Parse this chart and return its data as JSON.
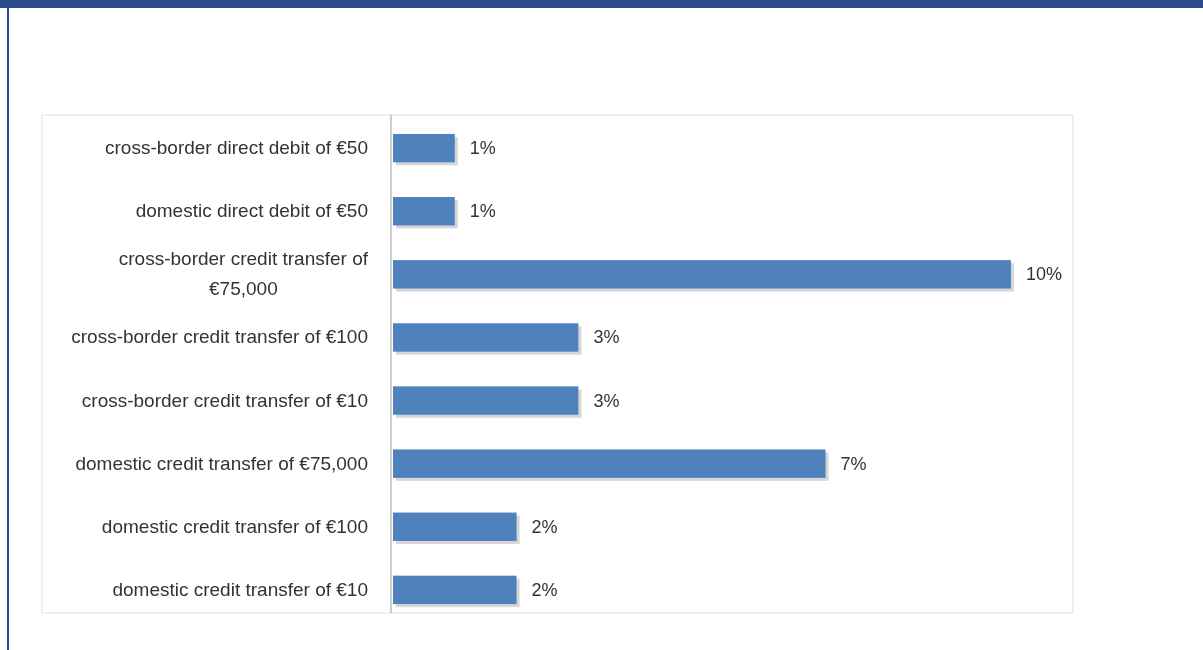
{
  "chart_data": {
    "type": "bar",
    "orientation": "horizontal",
    "categories": [
      "cross-border direct debit of €50",
      "domestic direct debit of €50",
      "cross-border credit transfer of €75,000",
      "cross-border credit transfer of €100",
      "cross-border credit transfer of €10",
      "domestic credit transfer of €75,000",
      "domestic credit transfer of €100",
      "domestic credit transfer of €10"
    ],
    "values": [
      1,
      1,
      10,
      3,
      3,
      7,
      2,
      2
    ],
    "value_labels": [
      "1%",
      "1%",
      "10%",
      "3%",
      "3%",
      "7%",
      "2%",
      "2%"
    ],
    "color": "#4f81bd",
    "tick_labels": "y"
  }
}
